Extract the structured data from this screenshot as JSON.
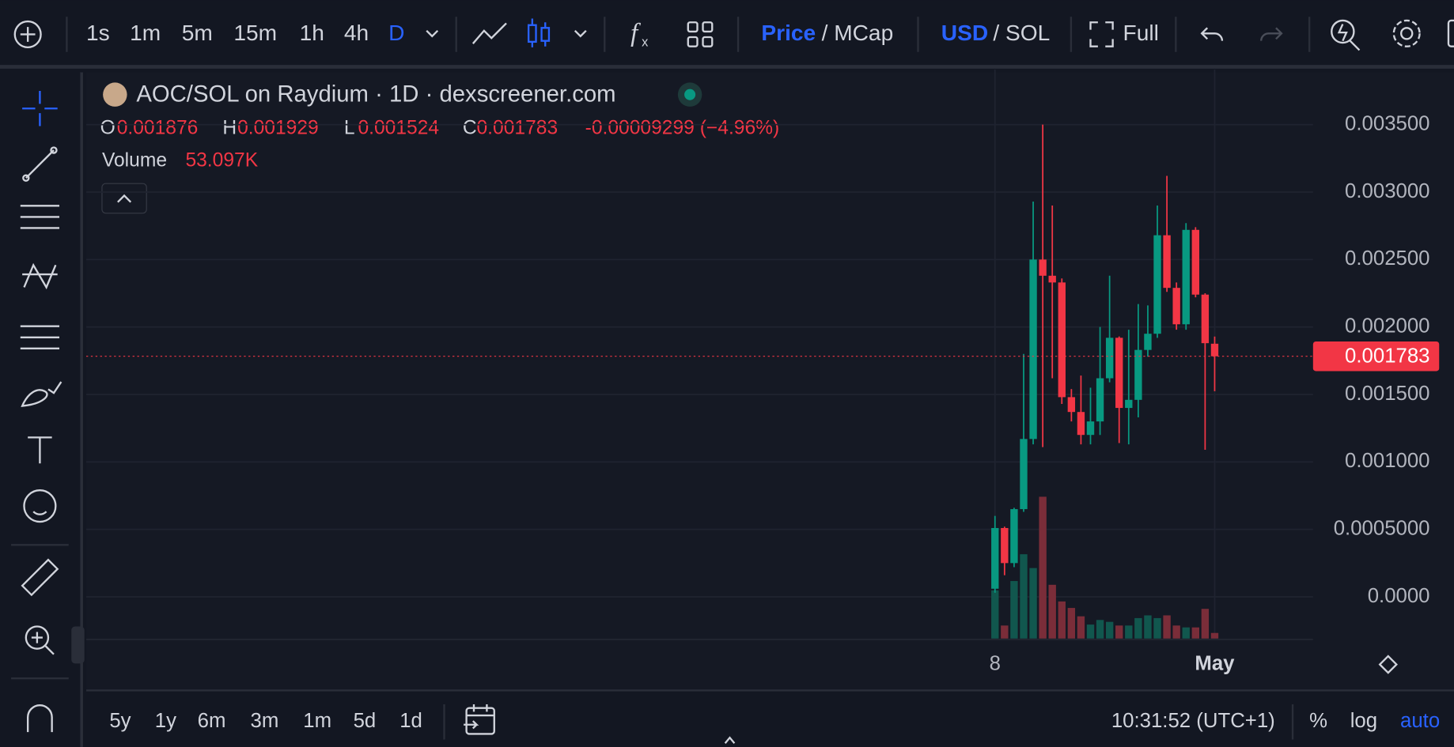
{
  "toolbar": {
    "intervals": [
      "1s",
      "1m",
      "5m",
      "15m",
      "1h",
      "4h",
      "D"
    ],
    "price": "Price",
    "mcap": "/ MCap",
    "usd": "USD",
    "sol": "/ SOL",
    "full": "Full"
  },
  "legend": {
    "open_letter": "O",
    "high_letter": "H",
    "low_letter": "L",
    "close_letter": "C",
    "change": "-0.00009299 (−4.96%)",
    "volume_label": "Volume",
    "volume_value": "53.097K"
  },
  "bottom_bar": {
    "ranges": [
      "5y",
      "1y",
      "6m",
      "3m",
      "1m",
      "5d",
      "1d"
    ],
    "time": "10:31:52 (UTC+1)",
    "percent": "%",
    "log": "log",
    "auto": "auto"
  },
  "chart_data": {
    "type": "candlestick",
    "title": "AOC/SOL on Raydium · 1D · dexscreener.com",
    "categories": [
      "8",
      null,
      null,
      null,
      null,
      null,
      null,
      null,
      null,
      null,
      null,
      null,
      null,
      null,
      null,
      null,
      null,
      null,
      null,
      null,
      null,
      null,
      null,
      "May"
    ],
    "open": [
      6e-05,
      0.00051,
      0.00025,
      0.00065,
      0.00117,
      0.0025,
      0.00238,
      0.00233,
      0.00148,
      0.00137,
      0.0012,
      0.0013,
      0.00162,
      0.00192,
      0.0014,
      0.00146,
      0.00183,
      0.00195,
      0.00268,
      0.00229,
      0.00202,
      0.00272,
      0.00224,
      0.001876
    ],
    "high": [
      0.0006,
      0.00052,
      0.00066,
      0.0018,
      0.00293,
      0.0035,
      0.0029,
      0.00236,
      0.00154,
      0.00164,
      0.00155,
      0.002,
      0.00238,
      0.00193,
      0.00198,
      0.00217,
      0.00216,
      0.0029,
      0.00312,
      0.00233,
      0.00277,
      0.00274,
      0.00225,
      0.001929
    ],
    "low": [
      3e-05,
      0.00016,
      0.00022,
      0.00063,
      0.00113,
      0.00111,
      0.00162,
      0.00143,
      0.0013,
      0.00113,
      0.00113,
      0.0012,
      0.00159,
      0.00114,
      0.00113,
      0.00133,
      0.00178,
      0.00192,
      0.00226,
      0.00198,
      0.00198,
      0.00222,
      0.00109,
      0.001524
    ],
    "close": [
      0.00051,
      0.00025,
      0.00065,
      0.00117,
      0.0025,
      0.00238,
      0.00233,
      0.00148,
      0.00137,
      0.0012,
      0.0013,
      0.00162,
      0.00192,
      0.0014,
      0.00146,
      0.00183,
      0.00195,
      0.00268,
      0.00229,
      0.00202,
      0.00272,
      0.00224,
      0.00188,
      0.001783
    ],
    "volume": [
      460000,
      124000,
      549000,
      805000,
      673000,
      1354000,
      513000,
      354000,
      292000,
      212000,
      133000,
      177000,
      159000,
      124000,
      124000,
      195000,
      221000,
      195000,
      221000,
      124000,
      106000,
      106000,
      283000,
      53097
    ],
    "up_color": "#089981",
    "down_color": "#f23645",
    "volume_up_color": "#11574e",
    "volume_down_color": "#7a2d39",
    "ylim": [
      -0.000309,
      0.003908
    ],
    "yticks": [
      {
        "value": 0,
        "label": "0.0000"
      },
      {
        "value": 0.0005,
        "label": "0.0005000"
      },
      {
        "value": 0.001,
        "label": "0.001000"
      },
      {
        "value": 0.0015,
        "label": "0.001500"
      },
      {
        "value": 0.002,
        "label": "0.002000"
      },
      {
        "value": 0.0025,
        "label": "0.002500"
      },
      {
        "value": 0.003,
        "label": "0.003000"
      },
      {
        "value": 0.0035,
        "label": "0.003500"
      }
    ],
    "grid": true
  }
}
